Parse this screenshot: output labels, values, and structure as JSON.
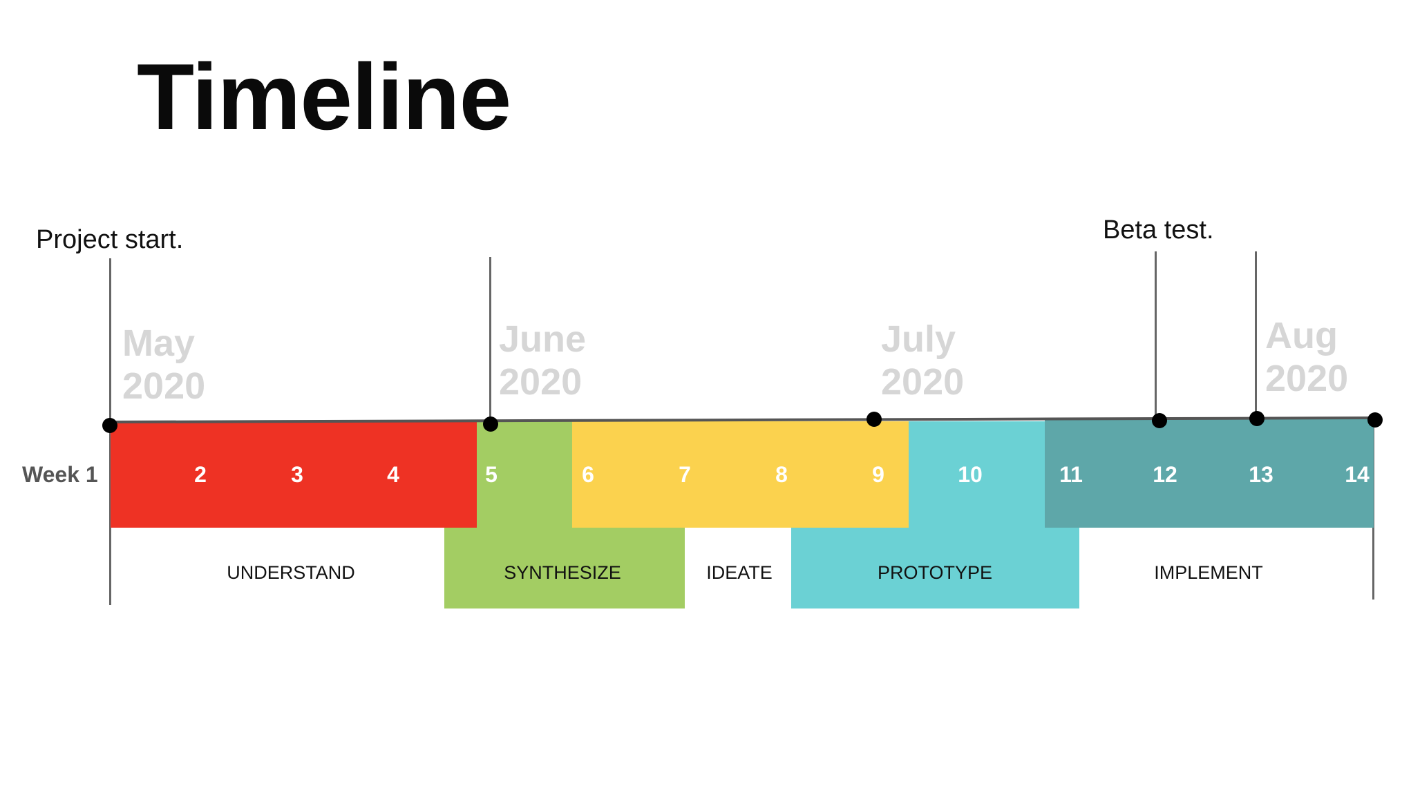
{
  "title": "Timeline",
  "annotations": {
    "project_start": "Project start.",
    "beta_test": "Beta test."
  },
  "months": [
    {
      "name": "May",
      "year": "2020"
    },
    {
      "name": "June",
      "year": "2020"
    },
    {
      "name": "July",
      "year": "2020"
    },
    {
      "name": "Aug",
      "year": "2020"
    }
  ],
  "week_label": "Week 1",
  "weeks": [
    "2",
    "3",
    "4",
    "5",
    "6",
    "7",
    "8",
    "9",
    "10",
    "11",
    "12",
    "13",
    "14"
  ],
  "phases": [
    {
      "label": "UNDERSTAND",
      "color": "#ffffff"
    },
    {
      "label": "SYNTHESIZE",
      "color": "#a3cd63"
    },
    {
      "label": "IDEATE",
      "color": "#ffffff"
    },
    {
      "label": "PROTOTYPE",
      "color": "#6bd1d4"
    },
    {
      "label": "IMPLEMENT",
      "color": "#ffffff"
    }
  ],
  "colors": {
    "understand": "#ee3224",
    "synthesize": "#a3cd63",
    "ideate": "#fbd24e",
    "prototype": "#6bd1d4",
    "implement": "#5ea7a9",
    "month_text": "#d6d6d6"
  }
}
